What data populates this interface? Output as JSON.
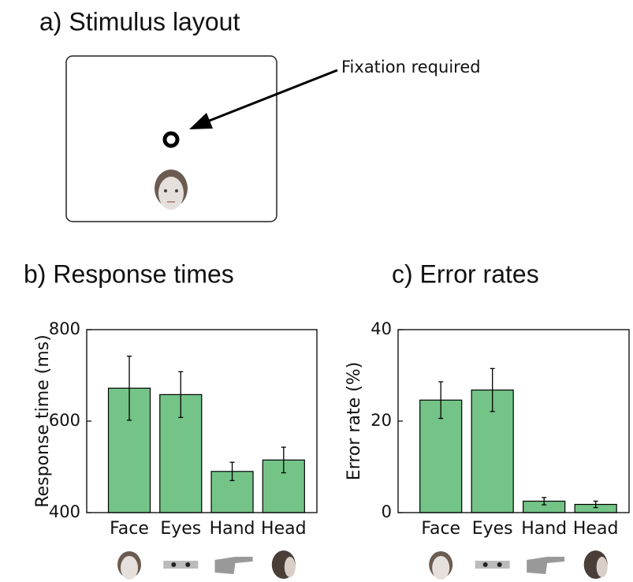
{
  "panel_a": {
    "title": "a) Stimulus layout",
    "annotation": "Fixation required"
  },
  "chart_data": [
    {
      "type": "bar",
      "title": "b) Response times",
      "ylabel": "Response time (ms)",
      "categories": [
        "Face",
        "Eyes",
        "Hand",
        "Head"
      ],
      "values": [
        672,
        658,
        490,
        515
      ],
      "errors": [
        70,
        50,
        20,
        28
      ],
      "color": "#74c487",
      "ylim": [
        400,
        800
      ],
      "yticks": [
        400,
        600,
        800
      ]
    },
    {
      "type": "bar",
      "title": "c) Error rates",
      "ylabel": "Error rate (%)",
      "categories": [
        "Face",
        "Eyes",
        "Hand",
        "Head"
      ],
      "values": [
        24.6,
        26.8,
        2.5,
        1.8
      ],
      "errors": [
        4,
        4.7,
        0.8,
        0.7
      ],
      "color": "#74c487",
      "ylim": [
        0,
        40
      ],
      "yticks": [
        0,
        20,
        40
      ]
    }
  ]
}
